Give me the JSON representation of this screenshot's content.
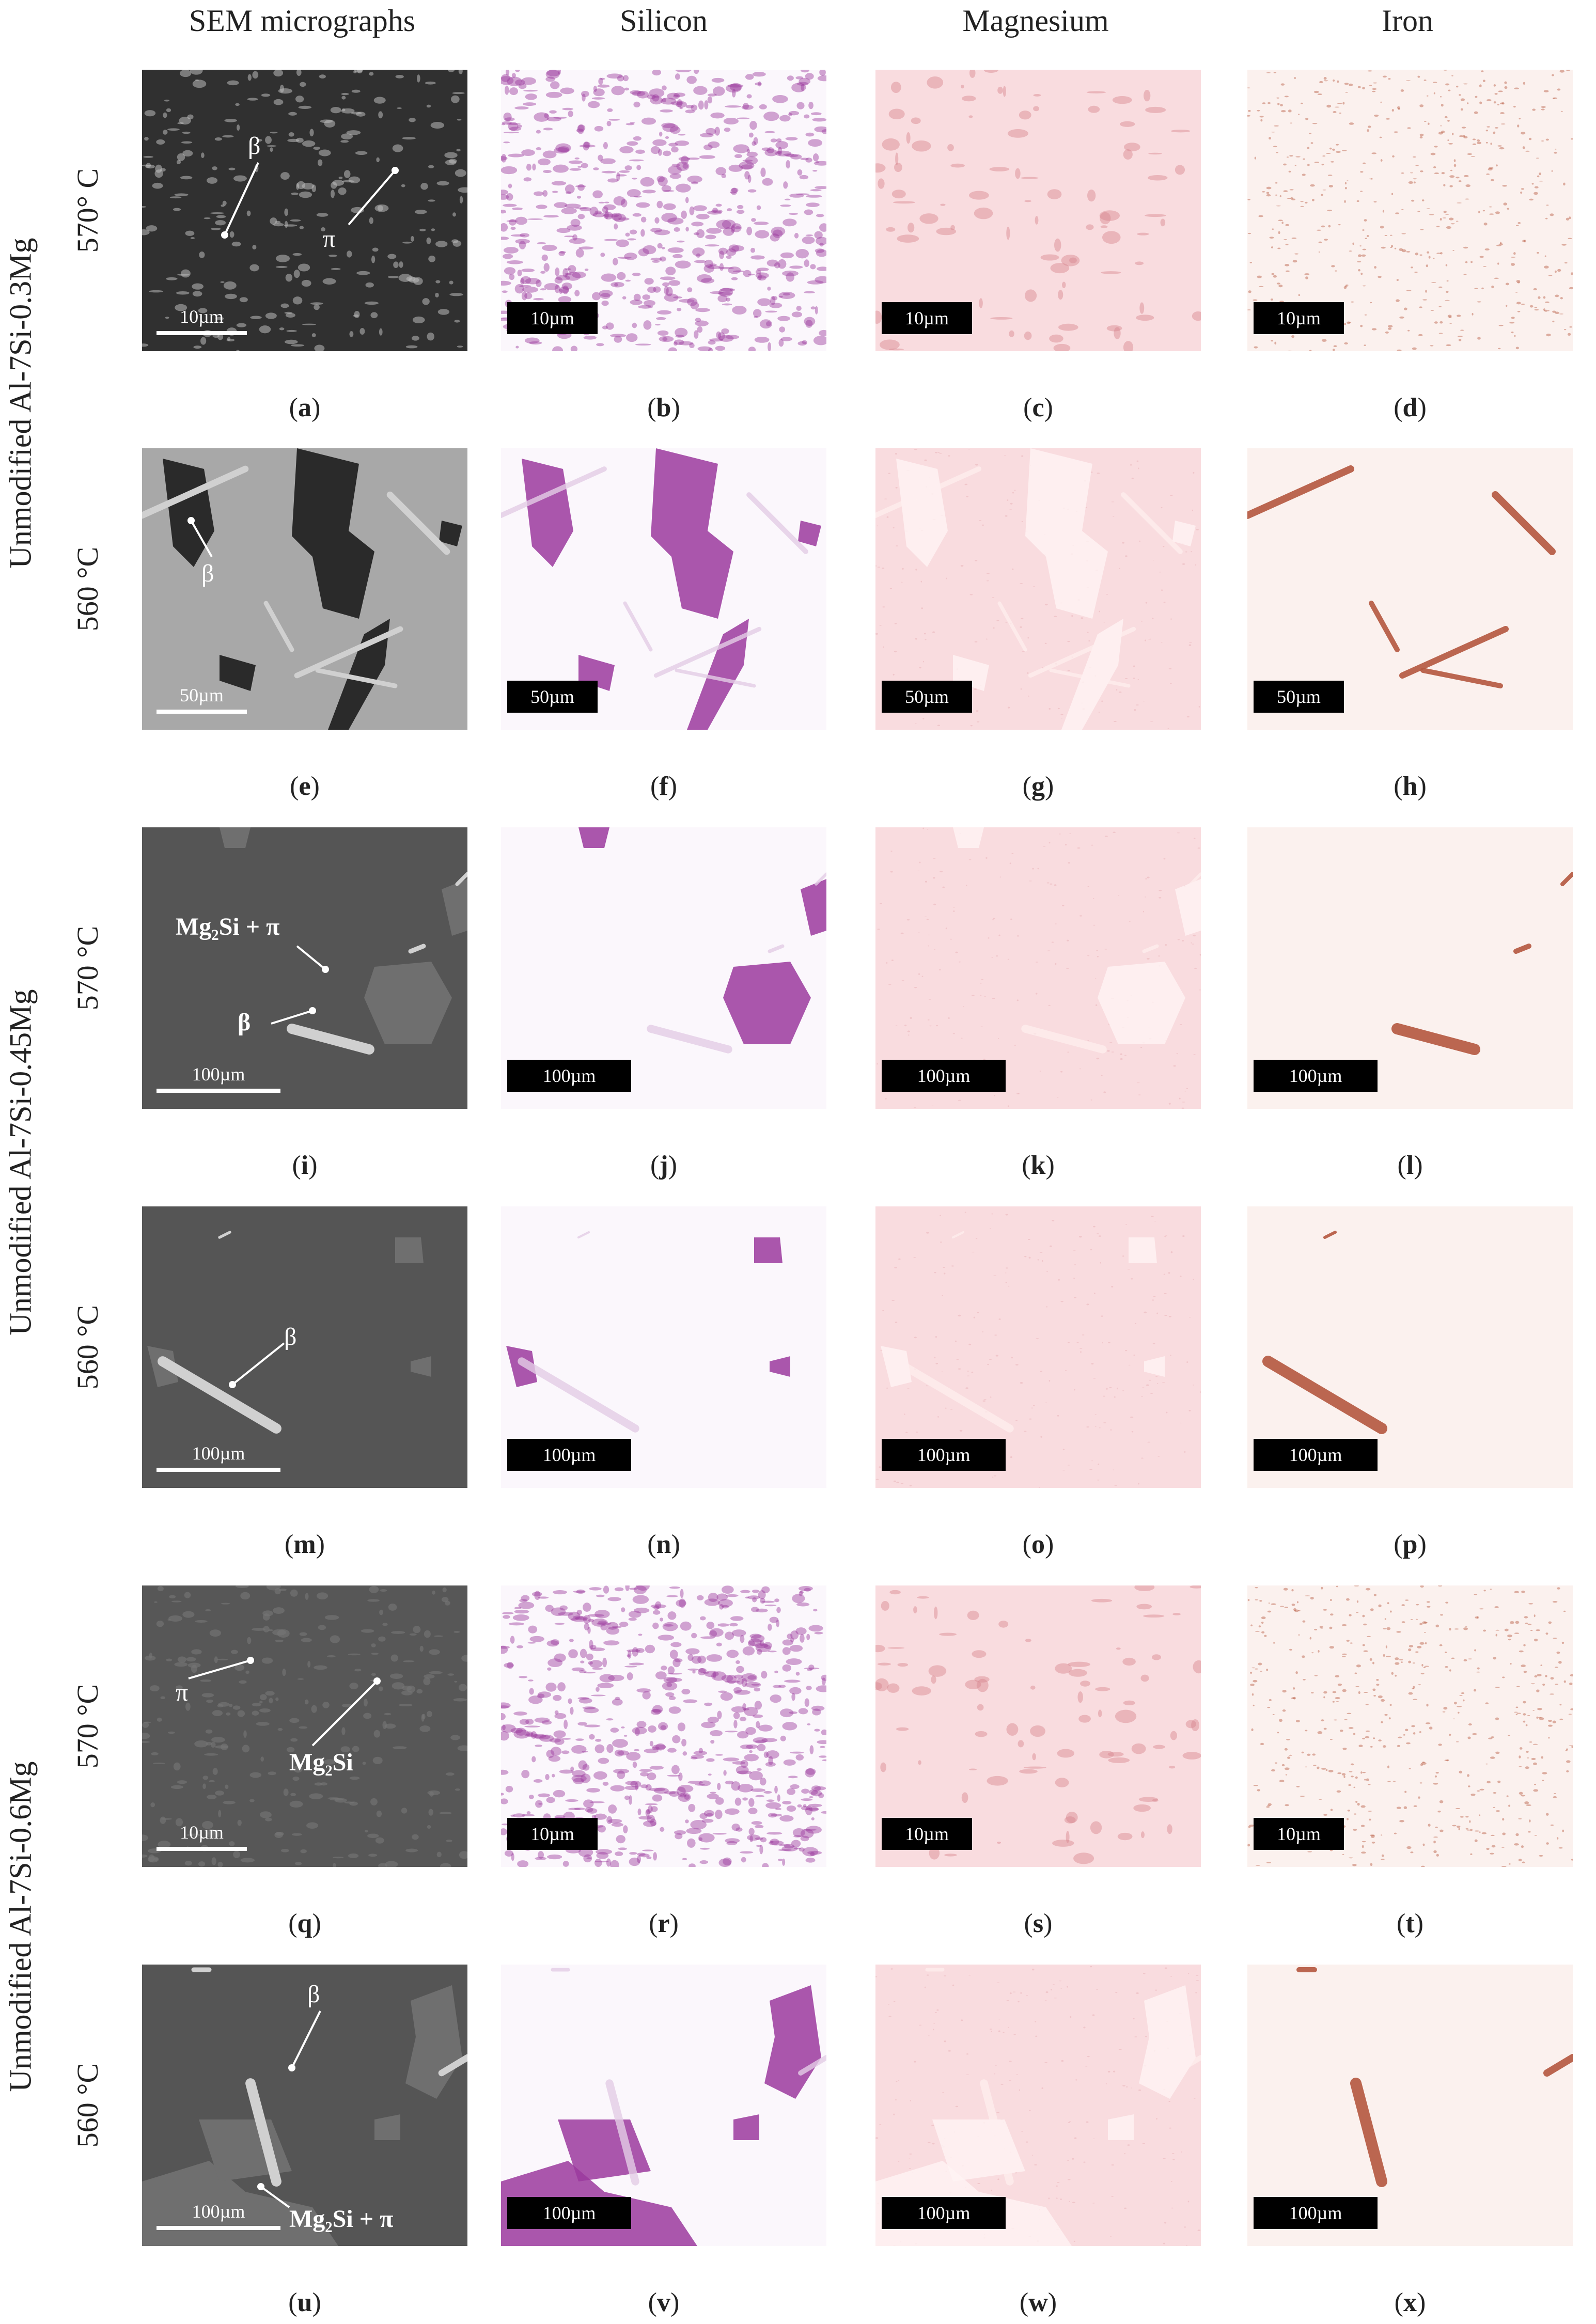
{
  "headers": [
    "SEM micrographs",
    "Silicon",
    "Magnesium",
    "Iron"
  ],
  "groups": [
    "Unmodified Al-7Si-0.3Mg",
    "Unmodified Al-7Si-0.45Mg",
    "Unmodified Al-7Si-0.6Mg"
  ],
  "rows": [
    {
      "temp": "570° C",
      "scale": "10µm",
      "labels": [
        "a",
        "b",
        "c",
        "d"
      ]
    },
    {
      "temp": "560 °C",
      "scale": "50µm",
      "labels": [
        "e",
        "f",
        "g",
        "h"
      ]
    },
    {
      "temp": "570 °C",
      "scale": "100µm",
      "labels": [
        "i",
        "j",
        "k",
        "l"
      ]
    },
    {
      "temp": "560 °C",
      "scale": "100µm",
      "labels": [
        "m",
        "n",
        "o",
        "p"
      ]
    },
    {
      "temp": "570 °C",
      "scale": "10µm",
      "labels": [
        "q",
        "r",
        "s",
        "t"
      ]
    },
    {
      "temp": "560 °C",
      "scale": "100µm",
      "labels": [
        "u",
        "v",
        "w",
        "x"
      ]
    }
  ],
  "annotations": {
    "beta": "β",
    "pi": "π",
    "mg2si_pi": "Mg₂Si + π",
    "mg2si": "Mg₂Si"
  },
  "colors": {
    "silicon": "#9b3a9e",
    "magnesium": "#d8848d",
    "iron": "#b5583f",
    "sem_background": "#555555"
  }
}
